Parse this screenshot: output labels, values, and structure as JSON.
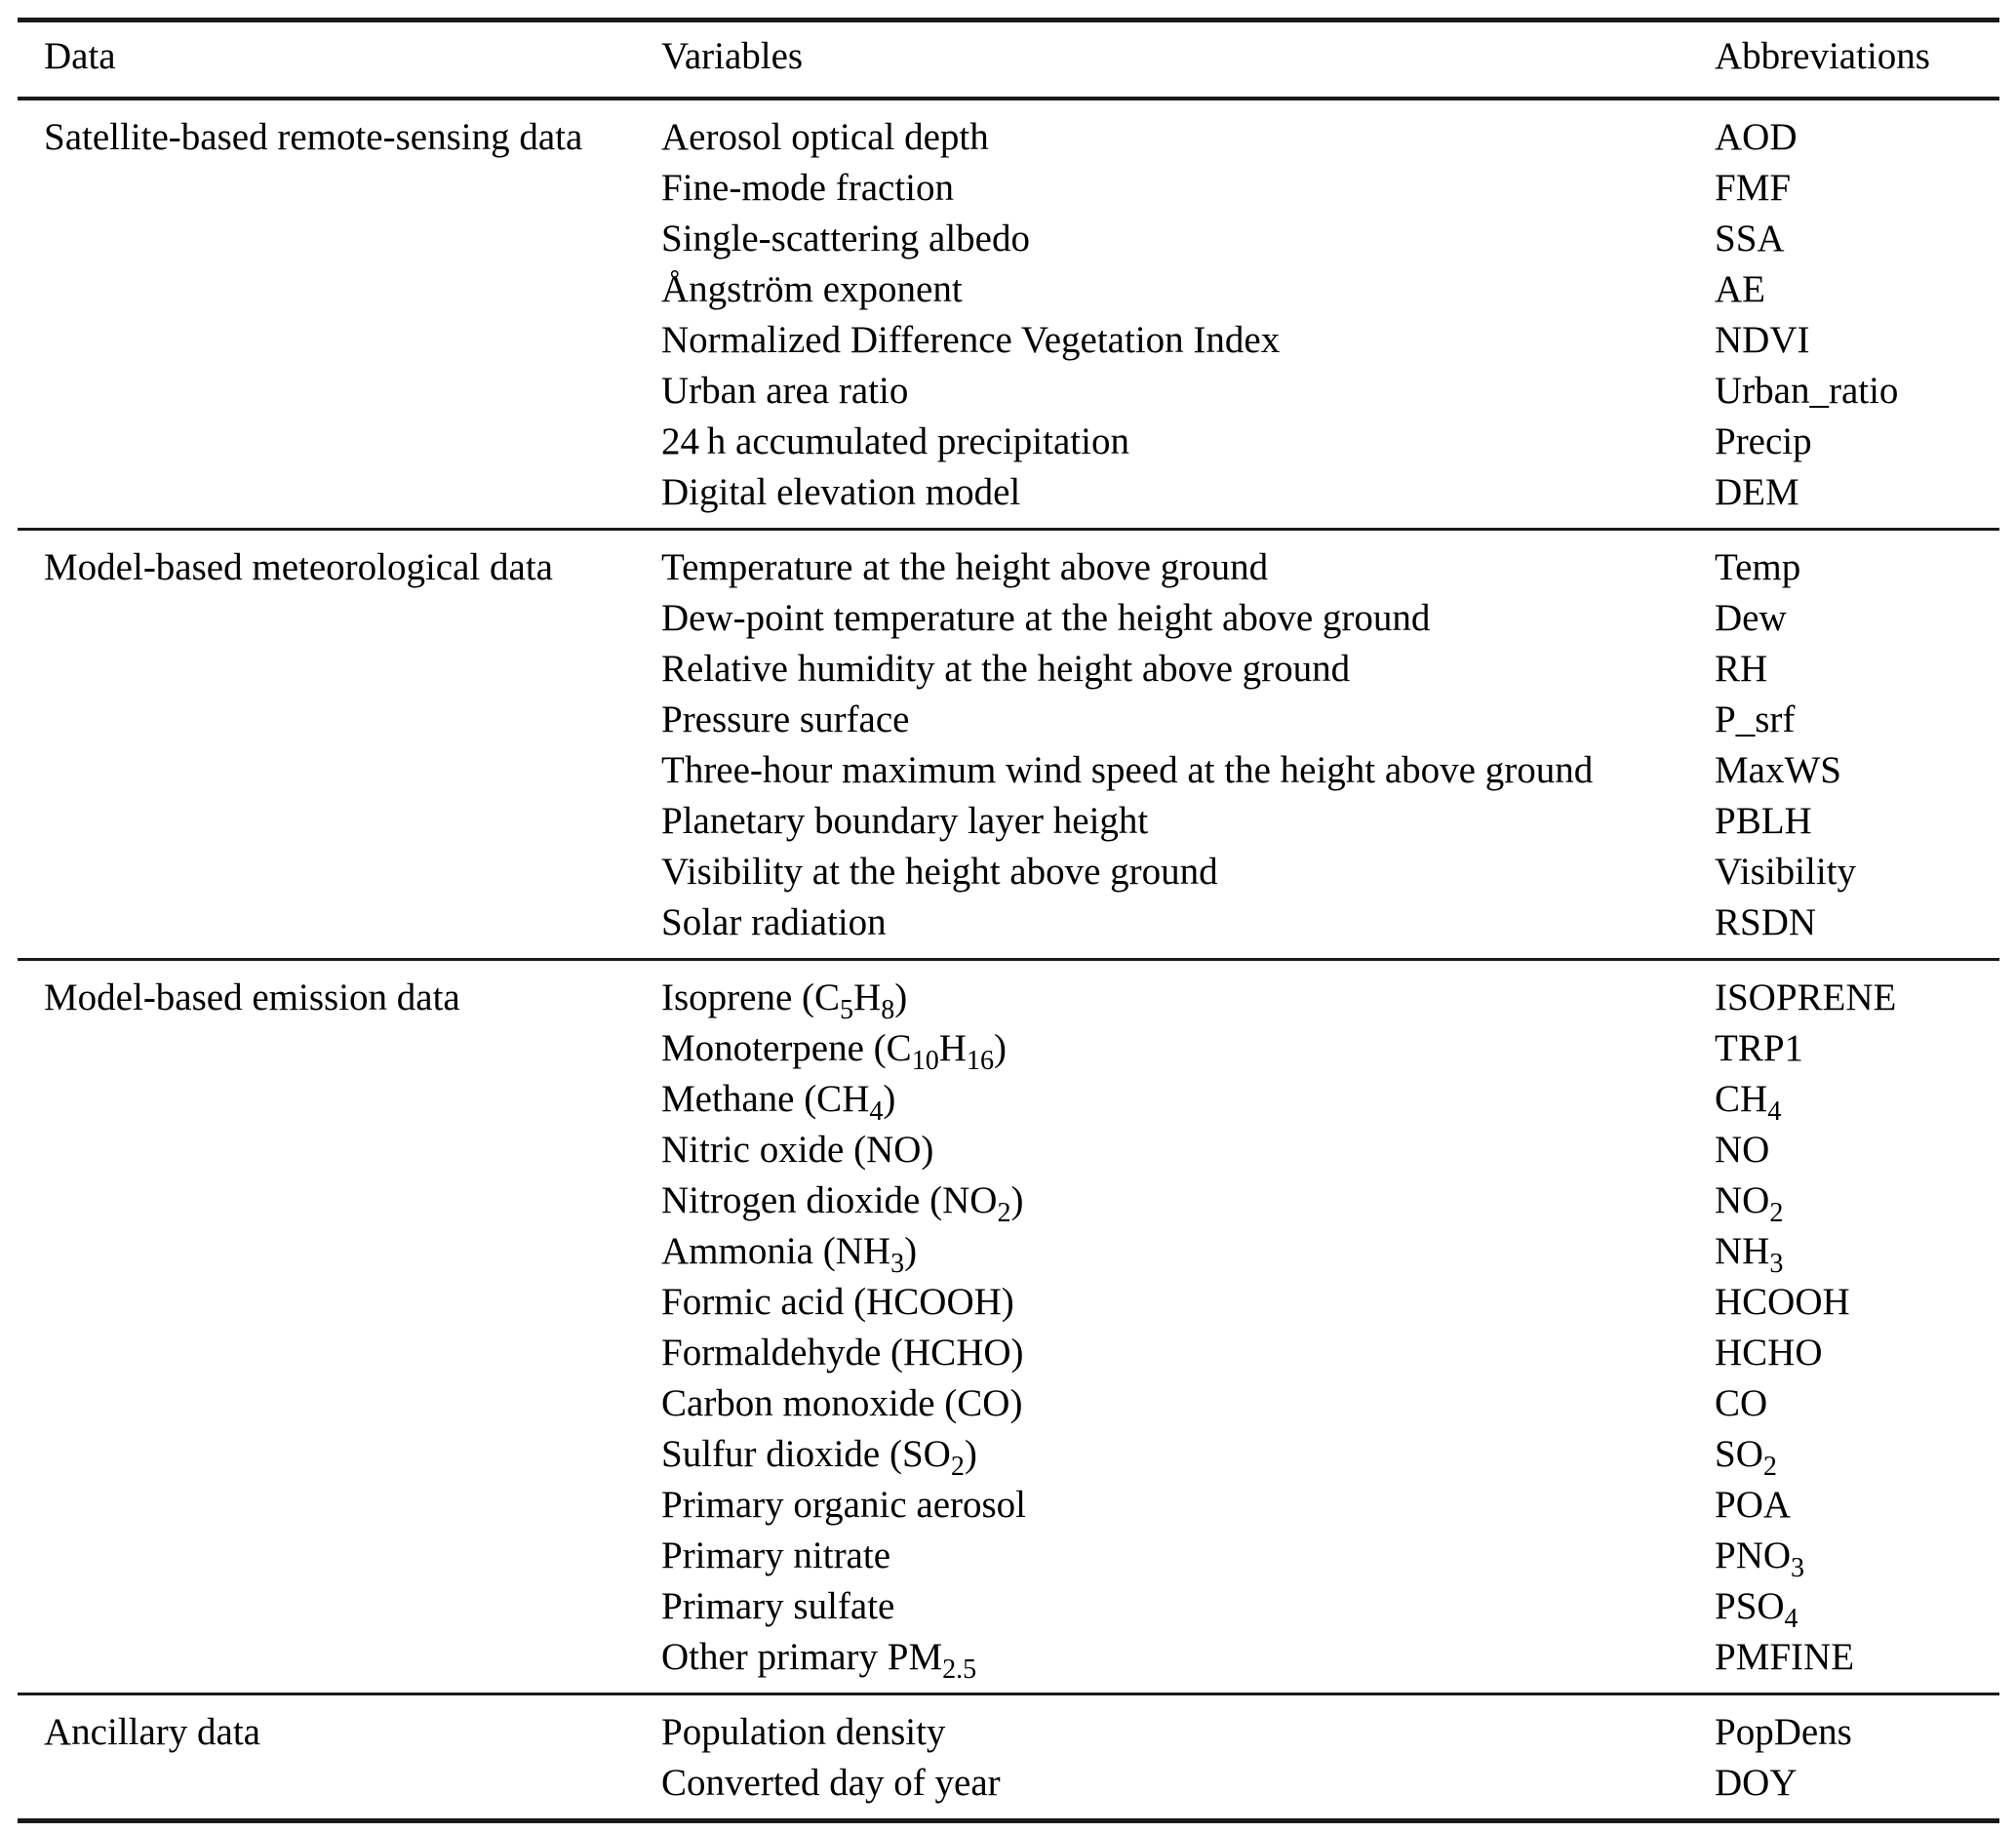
{
  "table": {
    "columns": [
      "Data",
      "Variables",
      "Abbreviations"
    ],
    "groups": [
      {
        "data": "Satellite-based remote-sensing data",
        "rows": [
          {
            "variable": "Aerosol optical depth",
            "abbr": "AOD"
          },
          {
            "variable": "Fine-mode fraction",
            "abbr": "FMF"
          },
          {
            "variable": "Single-scattering albedo",
            "abbr": "SSA"
          },
          {
            "variable": "Ångström exponent",
            "abbr": "AE"
          },
          {
            "variable": "Normalized Difference Vegetation Index",
            "abbr": "NDVI"
          },
          {
            "variable": "Urban area ratio",
            "abbr": "Urban_ratio"
          },
          {
            "variable": "24 h accumulated precipitation",
            "abbr": "Precip"
          },
          {
            "variable": "Digital elevation model",
            "abbr": "DEM"
          }
        ]
      },
      {
        "data": "Model-based meteorological data",
        "rows": [
          {
            "variable": "Temperature at the height above ground",
            "abbr": "Temp"
          },
          {
            "variable": "Dew-point temperature at the height above ground",
            "abbr": "Dew"
          },
          {
            "variable": "Relative humidity at the height above ground",
            "abbr": "RH"
          },
          {
            "variable": "Pressure surface",
            "abbr": "P_srf"
          },
          {
            "variable": "Three-hour maximum wind speed at the height above ground",
            "abbr": "MaxWS"
          },
          {
            "variable": "Planetary boundary layer height",
            "abbr": "PBLH"
          },
          {
            "variable": "Visibility at the height above ground",
            "abbr": "Visibility"
          },
          {
            "variable": "Solar radiation",
            "abbr": "RSDN"
          }
        ]
      },
      {
        "data": "Model-based emission data",
        "rows": [
          {
            "variable": "Isoprene (C~5~H~8~)",
            "abbr": "ISOPRENE"
          },
          {
            "variable": "Monoterpene (C~10~H~16~)",
            "abbr": "TRP1"
          },
          {
            "variable": "Methane (CH~4~)",
            "abbr": "CH~4~"
          },
          {
            "variable": "Nitric oxide (NO)",
            "abbr": "NO"
          },
          {
            "variable": "Nitrogen dioxide (NO~2~)",
            "abbr": "NO~2~"
          },
          {
            "variable": "Ammonia (NH~3~)",
            "abbr": "NH~3~"
          },
          {
            "variable": "Formic acid (HCOOH)",
            "abbr": "HCOOH"
          },
          {
            "variable": "Formaldehyde (HCHO)",
            "abbr": "HCHO"
          },
          {
            "variable": "Carbon monoxide (CO)",
            "abbr": "CO"
          },
          {
            "variable": "Sulfur dioxide (SO~2~)",
            "abbr": "SO~2~"
          },
          {
            "variable": "Primary organic aerosol",
            "abbr": "POA"
          },
          {
            "variable": "Primary nitrate",
            "abbr": "PNO~3~"
          },
          {
            "variable": "Primary sulfate",
            "abbr": "PSO~4~"
          },
          {
            "variable": "Other primary PM~2.5~",
            "abbr": "PMFINE"
          }
        ]
      },
      {
        "data": "Ancillary data",
        "rows": [
          {
            "variable": "Population density",
            "abbr": "PopDens"
          },
          {
            "variable": "Converted day of year",
            "abbr": "DOY"
          }
        ]
      }
    ]
  }
}
